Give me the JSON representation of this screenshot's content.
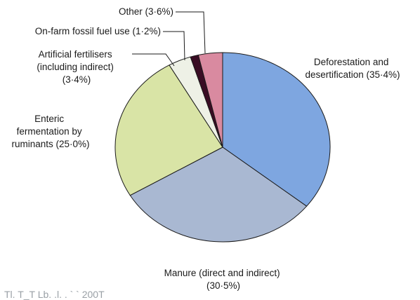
{
  "chart_data": {
    "type": "pie",
    "title": "",
    "slices": [
      {
        "name": "Deforestation and desertification",
        "value": 35.4,
        "color": "#7ea6e0",
        "label_lines": [
          "Deforestation and",
          "desertification (35·4%)"
        ]
      },
      {
        "name": "Manure (direct and indirect)",
        "value": 30.5,
        "color": "#a9b8d2",
        "label_lines": [
          "Manure (direct and indirect)",
          "(30·5%)"
        ]
      },
      {
        "name": "Enteric fermentation by ruminants",
        "value": 25.0,
        "color": "#d9e4a6",
        "label_lines": [
          "Enteric",
          "fermentation by",
          "ruminants (25·0%)"
        ]
      },
      {
        "name": "Artificial fertilisers (including indirect)",
        "value": 3.4,
        "color": "#eef1e6",
        "label_lines": [
          "Artificial fertilisers",
          "(including indirect)",
          "(3·4%)"
        ]
      },
      {
        "name": "On-farm fossil fuel use",
        "value": 1.2,
        "color": "#3a0d24",
        "label_lines": [
          "On-farm fossil fuel use (1·2%)"
        ]
      },
      {
        "name": "Other",
        "value": 3.6,
        "color": "#d98aa0",
        "label_lines": [
          "Other (3·6%)"
        ]
      }
    ]
  },
  "caption": "Tl. T_T Lb. .l. . ` ` 200T"
}
